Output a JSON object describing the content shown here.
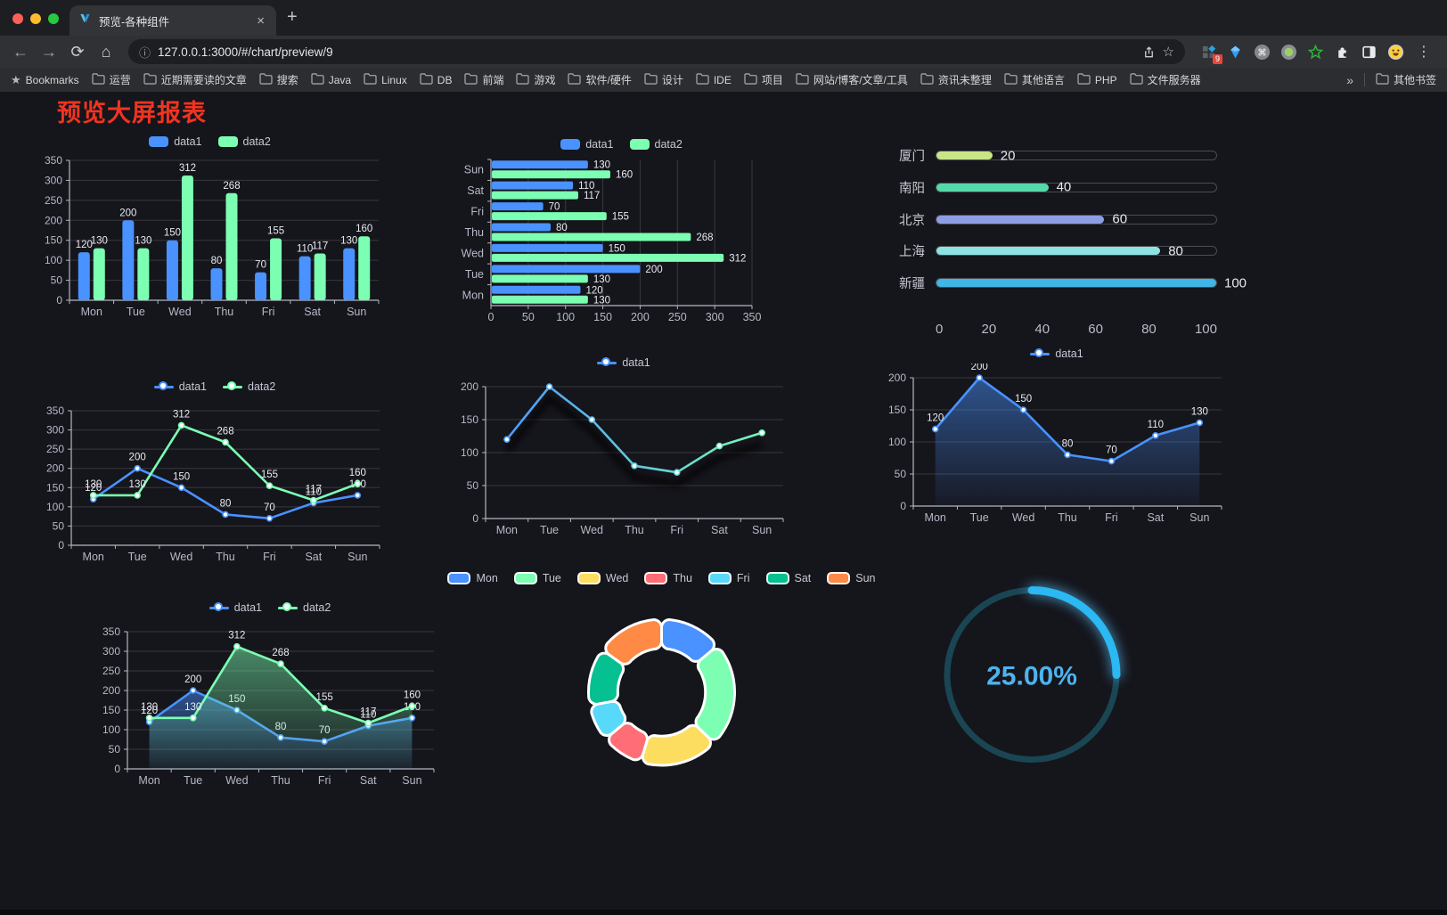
{
  "browser": {
    "tab_title": "预览-各种组件",
    "url": "127.0.0.1:3000/#/chart/preview/9",
    "extensions_badge": "9",
    "bookmarks_bar": {
      "root_label": "Bookmarks",
      "folders": [
        "运营",
        "近期需要读的文章",
        "搜索",
        "Java",
        "Linux",
        "DB",
        "前端",
        "游戏",
        "软件/硬件",
        "设计",
        "IDE",
        "项目",
        "网站/博客/文章/工具",
        "资讯未整理",
        "其他语言",
        "PHP",
        "文件服务器"
      ],
      "overflow": "»",
      "other": "其他书签"
    }
  },
  "glyphs": {
    "close": "×",
    "new_tab": "+",
    "back": "←",
    "forward": "→",
    "reload": "⟳",
    "home": "⌂",
    "info": "ⓘ",
    "star": "☆",
    "kebab": "⋮",
    "bookmark_star": "★"
  },
  "page": {
    "title": "预览大屏报表",
    "title_color": "#ef3420",
    "background": "#15151c"
  },
  "palette": {
    "blue": "#4992ff",
    "green": "#7cffb2",
    "yellow": "#fddd60",
    "red": "#ff6e76",
    "lightblue": "#58d9f9",
    "teal": "#05c091",
    "orange": "#ff8a45"
  },
  "chart_data": [
    {
      "name": "grouped-bar",
      "type": "bar",
      "legend_position": "top",
      "grid": true,
      "categories": [
        "Mon",
        "Tue",
        "Wed",
        "Thu",
        "Fri",
        "Sat",
        "Sun"
      ],
      "series": [
        {
          "name": "data1",
          "color": "#4992ff",
          "values": [
            120,
            200,
            150,
            80,
            70,
            110,
            130
          ]
        },
        {
          "name": "data2",
          "color": "#7cffb2",
          "values": [
            130,
            130,
            312,
            268,
            155,
            117,
            160
          ]
        }
      ],
      "ylim": [
        0,
        350
      ],
      "ystep": 50,
      "labels": true
    },
    {
      "name": "horizontal-grouped-bar",
      "type": "bar-horizontal",
      "legend_position": "top",
      "grid": true,
      "categories": [
        "Mon",
        "Tue",
        "Wed",
        "Thu",
        "Fri",
        "Sat",
        "Sun"
      ],
      "series": [
        {
          "name": "data1",
          "color": "#4992ff",
          "values": [
            120,
            200,
            150,
            80,
            70,
            110,
            130
          ]
        },
        {
          "name": "data2",
          "color": "#7cffb2",
          "values": [
            130,
            130,
            312,
            268,
            155,
            117,
            160
          ]
        }
      ],
      "xlim": [
        0,
        350
      ],
      "xstep": 50,
      "labels": true
    },
    {
      "name": "progress-bar-list",
      "type": "bar-progress",
      "categories": [
        "厦门",
        "南阳",
        "北京",
        "上海",
        "新疆"
      ],
      "values": [
        20,
        40,
        60,
        80,
        100
      ],
      "colors": [
        "#c9e687",
        "#55d9ab",
        "#8f9ee3",
        "#8fe2e2",
        "#3fb6e3"
      ],
      "xlim": [
        0,
        100
      ],
      "xticks": [
        0,
        20,
        40,
        60,
        80,
        100
      ]
    },
    {
      "name": "two-series-line",
      "type": "line",
      "legend_position": "top",
      "grid": true,
      "categories": [
        "Mon",
        "Tue",
        "Wed",
        "Thu",
        "Fri",
        "Sat",
        "Sun"
      ],
      "series": [
        {
          "name": "data1",
          "color": "#4992ff",
          "values": [
            120,
            200,
            150,
            80,
            70,
            110,
            130
          ]
        },
        {
          "name": "data2",
          "color": "#7cffb2",
          "values": [
            130,
            130,
            312,
            268,
            155,
            117,
            160
          ]
        }
      ],
      "ylim": [
        0,
        350
      ],
      "ystep": 50,
      "labels": true
    },
    {
      "name": "gradient-line",
      "type": "line",
      "variant": "gradient-shadow",
      "legend_position": "top",
      "grid": true,
      "categories": [
        "Mon",
        "Tue",
        "Wed",
        "Thu",
        "Fri",
        "Sat",
        "Sun"
      ],
      "series": [
        {
          "name": "data1",
          "color": "#4992ff",
          "gradient": [
            "#4992ff",
            "#7cffb2"
          ],
          "values": [
            120,
            200,
            150,
            80,
            70,
            110,
            130
          ]
        }
      ],
      "ylim": [
        0,
        200
      ],
      "ystep": 50,
      "labels": false
    },
    {
      "name": "single-area-line",
      "type": "area",
      "legend_position": "top",
      "grid": true,
      "categories": [
        "Mon",
        "Tue",
        "Wed",
        "Thu",
        "Fri",
        "Sat",
        "Sun"
      ],
      "series": [
        {
          "name": "data1",
          "color": "#4992ff",
          "values": [
            120,
            200,
            150,
            80,
            70,
            110,
            130
          ]
        }
      ],
      "ylim": [
        0,
        200
      ],
      "ystep": 50,
      "labels": true
    },
    {
      "name": "two-series-area-line",
      "type": "area",
      "legend_position": "top",
      "grid": true,
      "categories": [
        "Mon",
        "Tue",
        "Wed",
        "Thu",
        "Fri",
        "Sat",
        "Sun"
      ],
      "series": [
        {
          "name": "data1",
          "color": "#4992ff",
          "values": [
            120,
            200,
            150,
            80,
            70,
            110,
            130
          ]
        },
        {
          "name": "data2",
          "color": "#7cffb2",
          "values": [
            130,
            130,
            312,
            268,
            155,
            117,
            160
          ]
        }
      ],
      "ylim": [
        0,
        350
      ],
      "ystep": 50,
      "labels": true
    },
    {
      "name": "donut-pie",
      "type": "pie",
      "legend_position": "top",
      "inner_radius_ratio": 0.6,
      "categories": [
        "Mon",
        "Tue",
        "Wed",
        "Thu",
        "Fri",
        "Sat",
        "Sun"
      ],
      "values": [
        120,
        200,
        150,
        80,
        70,
        110,
        130
      ],
      "colors": [
        "#4992ff",
        "#7cffb2",
        "#fddd60",
        "#ff6e76",
        "#58d9f9",
        "#05c091",
        "#ff8a45"
      ]
    },
    {
      "name": "gauge-ring",
      "type": "gauge",
      "value": 25,
      "max": 100,
      "label": "25.00%",
      "color": "#2bb8f3",
      "track_color": "#1a4553",
      "text_color": "#4db3ec"
    }
  ]
}
